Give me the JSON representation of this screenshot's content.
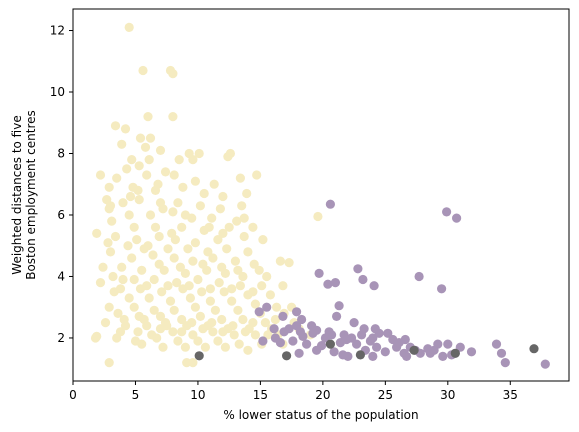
{
  "chart_data": {
    "type": "scatter",
    "title": "",
    "xlabel": "% lower status of the population",
    "ylabel_lines": [
      "Weighted distances to five",
      "Boston employment centres"
    ],
    "xlim": [
      0,
      39.7
    ],
    "ylim": [
      0.6,
      12.7
    ],
    "xticks": [
      0,
      5,
      10,
      15,
      20,
      25,
      30,
      35
    ],
    "yticks": [
      2,
      4,
      6,
      8,
      10,
      12
    ],
    "grid": false,
    "legend": "none",
    "series": [
      {
        "color": "#f5ebc0",
        "points": [
          [
            4.5,
            12.1
          ],
          [
            5.6,
            10.7
          ],
          [
            7.8,
            10.7
          ],
          [
            8.0,
            10.6
          ],
          [
            6.0,
            9.2
          ],
          [
            8.0,
            9.2
          ],
          [
            3.4,
            8.9
          ],
          [
            4.2,
            8.8
          ],
          [
            5.4,
            8.5
          ],
          [
            6.2,
            8.5
          ],
          [
            3.9,
            8.3
          ],
          [
            5.8,
            8.2
          ],
          [
            7.0,
            8.1
          ],
          [
            9.3,
            8.0
          ],
          [
            10.1,
            8.0
          ],
          [
            12.6,
            8.0
          ],
          [
            4.7,
            7.8
          ],
          [
            6.1,
            7.8
          ],
          [
            8.5,
            7.8
          ],
          [
            9.6,
            7.8
          ],
          [
            12.4,
            7.9
          ],
          [
            4.3,
            7.5
          ],
          [
            5.3,
            7.6
          ],
          [
            7.4,
            7.4
          ],
          [
            2.2,
            7.3
          ],
          [
            3.5,
            7.2
          ],
          [
            5.9,
            7.3
          ],
          [
            8.1,
            7.3
          ],
          [
            9.8,
            7.1
          ],
          [
            11.3,
            7.0
          ],
          [
            13.4,
            7.2
          ],
          [
            14.7,
            7.3
          ],
          [
            2.9,
            6.9
          ],
          [
            4.8,
            6.9
          ],
          [
            6.6,
            6.8
          ],
          [
            8.8,
            6.9
          ],
          [
            10.5,
            6.7
          ],
          [
            12.0,
            6.6
          ],
          [
            13.9,
            6.7
          ],
          [
            2.7,
            6.5
          ],
          [
            4.0,
            6.4
          ],
          [
            5.3,
            6.5
          ],
          [
            7.0,
            6.4
          ],
          [
            8.4,
            6.4
          ],
          [
            10.2,
            6.3
          ],
          [
            11.8,
            6.2
          ],
          [
            13.5,
            6.3
          ],
          [
            2.9,
            6.2
          ],
          [
            4.5,
            6.0
          ],
          [
            6.2,
            6.0
          ],
          [
            8.0,
            6.1
          ],
          [
            9.5,
            5.9
          ],
          [
            11.1,
            5.9
          ],
          [
            13.1,
            5.8
          ],
          [
            19.6,
            5.95
          ],
          [
            3.1,
            5.8
          ],
          [
            4.9,
            5.6
          ],
          [
            6.6,
            5.6
          ],
          [
            8.7,
            5.6
          ],
          [
            10.5,
            5.5
          ],
          [
            12.5,
            5.6
          ],
          [
            14.4,
            5.6
          ],
          [
            1.9,
            5.4
          ],
          [
            3.4,
            5.3
          ],
          [
            5.1,
            5.2
          ],
          [
            6.9,
            5.3
          ],
          [
            8.2,
            5.2
          ],
          [
            9.8,
            5.1
          ],
          [
            11.6,
            5.2
          ],
          [
            13.7,
            5.3
          ],
          [
            15.2,
            5.2
          ],
          [
            2.8,
            5.1
          ],
          [
            4.4,
            5.0
          ],
          [
            6.0,
            5.0
          ],
          [
            7.6,
            4.9
          ],
          [
            9.2,
            4.9
          ],
          [
            10.8,
            4.8
          ],
          [
            12.3,
            4.9
          ],
          [
            14.0,
            4.8
          ],
          [
            3.0,
            4.8
          ],
          [
            4.7,
            4.6
          ],
          [
            6.4,
            4.7
          ],
          [
            8.1,
            4.6
          ],
          [
            9.6,
            4.5
          ],
          [
            11.2,
            4.6
          ],
          [
            13.0,
            4.5
          ],
          [
            14.5,
            4.4
          ],
          [
            16.6,
            4.5
          ],
          [
            17.3,
            4.45
          ],
          [
            2.4,
            4.3
          ],
          [
            3.9,
            4.3
          ],
          [
            5.5,
            4.2
          ],
          [
            7.3,
            4.2
          ],
          [
            9.0,
            4.1
          ],
          [
            10.7,
            4.2
          ],
          [
            12.2,
            4.1
          ],
          [
            13.6,
            4.0
          ],
          [
            15.5,
            4.0
          ],
          [
            3.2,
            4.0
          ],
          [
            4.9,
            3.9
          ],
          [
            6.5,
            3.9
          ],
          [
            8.3,
            3.8
          ],
          [
            10.0,
            3.9
          ],
          [
            11.7,
            3.8
          ],
          [
            13.4,
            3.7
          ],
          [
            15.1,
            3.7
          ],
          [
            16.8,
            3.7
          ],
          [
            2.2,
            3.8
          ],
          [
            3.8,
            3.6
          ],
          [
            5.4,
            3.6
          ],
          [
            7.1,
            3.5
          ],
          [
            8.8,
            3.6
          ],
          [
            10.3,
            3.5
          ],
          [
            12.1,
            3.5
          ],
          [
            14.0,
            3.4
          ],
          [
            15.8,
            3.4
          ],
          [
            3.3,
            3.5
          ],
          [
            4.5,
            3.3
          ],
          [
            6.1,
            3.3
          ],
          [
            7.8,
            3.2
          ],
          [
            9.4,
            3.3
          ],
          [
            11.0,
            3.2
          ],
          [
            12.7,
            3.2
          ],
          [
            14.6,
            3.1
          ],
          [
            16.3,
            3.0
          ],
          [
            17.5,
            3.0
          ],
          [
            2.9,
            3.0
          ],
          [
            4.9,
            3.0
          ],
          [
            6.5,
            2.9
          ],
          [
            8.1,
            2.9
          ],
          [
            9.8,
            3.0
          ],
          [
            11.4,
            2.9
          ],
          [
            13.2,
            2.9
          ],
          [
            15.0,
            2.8
          ],
          [
            16.9,
            2.8
          ],
          [
            3.6,
            2.8
          ],
          [
            5.3,
            2.7
          ],
          [
            7.0,
            2.7
          ],
          [
            8.7,
            2.6
          ],
          [
            10.2,
            2.7
          ],
          [
            11.9,
            2.6
          ],
          [
            13.6,
            2.6
          ],
          [
            15.4,
            2.5
          ],
          [
            17.7,
            2.5
          ],
          [
            2.6,
            2.5
          ],
          [
            4.2,
            2.4
          ],
          [
            5.9,
            2.4
          ],
          [
            7.5,
            2.4
          ],
          [
            9.1,
            2.4
          ],
          [
            10.8,
            2.4
          ],
          [
            12.4,
            2.3
          ],
          [
            14.1,
            2.3
          ],
          [
            15.9,
            2.3
          ],
          [
            18.1,
            2.3
          ],
          [
            3.8,
            2.2
          ],
          [
            6.3,
            2.1
          ],
          [
            8.0,
            2.2
          ],
          [
            9.6,
            2.1
          ],
          [
            11.2,
            2.2
          ],
          [
            12.9,
            2.1
          ],
          [
            14.6,
            2.1
          ],
          [
            16.4,
            2.1
          ],
          [
            19.0,
            2.1
          ],
          [
            1.8,
            2.0
          ],
          [
            3.5,
            2.0
          ],
          [
            5.0,
            1.9
          ],
          [
            6.7,
            2.0
          ],
          [
            8.4,
            1.9
          ],
          [
            10.0,
            1.9
          ],
          [
            11.6,
            1.9
          ],
          [
            13.3,
            1.8
          ],
          [
            15.1,
            1.8
          ],
          [
            16.8,
            1.8
          ],
          [
            7.2,
            1.7
          ],
          [
            9.0,
            1.7
          ],
          [
            10.6,
            1.7
          ],
          [
            12.2,
            1.7
          ],
          [
            14.0,
            1.6
          ],
          [
            5.5,
            1.8
          ],
          [
            9.1,
            1.2
          ],
          [
            9.6,
            1.2
          ],
          [
            2.9,
            1.2
          ],
          [
            1.9,
            2.05
          ],
          [
            4.6,
            6.6
          ],
          [
            3.0,
            6.3
          ],
          [
            5.2,
            6.8
          ],
          [
            6.8,
            7.0
          ],
          [
            7.2,
            6.2
          ],
          [
            9.0,
            6.0
          ],
          [
            10.9,
            5.6
          ],
          [
            12.0,
            5.4
          ],
          [
            13.7,
            5.9
          ],
          [
            7.9,
            5.4
          ],
          [
            5.7,
            4.9
          ],
          [
            6.9,
            4.4
          ],
          [
            8.6,
            4.3
          ],
          [
            10.4,
            4.4
          ],
          [
            11.9,
            4.3
          ],
          [
            13.2,
            4.2
          ],
          [
            14.9,
            4.2
          ],
          [
            4.0,
            3.9
          ],
          [
            5.9,
            3.7
          ],
          [
            7.6,
            3.7
          ],
          [
            9.3,
            3.7
          ],
          [
            11.0,
            3.6
          ],
          [
            12.7,
            3.6
          ],
          [
            14.4,
            3.5
          ],
          [
            4.1,
            2.6
          ],
          [
            5.7,
            2.6
          ],
          [
            7.4,
            2.5
          ],
          [
            9.5,
            2.5
          ],
          [
            11.1,
            2.5
          ],
          [
            12.8,
            2.4
          ],
          [
            14.4,
            2.5
          ],
          [
            16.2,
            2.6
          ],
          [
            5.2,
            2.2
          ],
          [
            7.0,
            2.3
          ],
          [
            8.7,
            2.2
          ],
          [
            10.4,
            2.3
          ],
          [
            12.0,
            2.2
          ],
          [
            13.8,
            2.2
          ],
          [
            15.6,
            2.1
          ]
        ]
      },
      {
        "color": "#a894b7",
        "points": [
          [
            20.6,
            6.35
          ],
          [
            29.9,
            6.1
          ],
          [
            30.7,
            5.9
          ],
          [
            19.7,
            4.1
          ],
          [
            21.0,
            3.8
          ],
          [
            22.8,
            4.25
          ],
          [
            20.4,
            3.75
          ],
          [
            23.2,
            3.9
          ],
          [
            24.1,
            3.7
          ],
          [
            27.7,
            4.0
          ],
          [
            29.5,
            3.6
          ],
          [
            15.5,
            3.0
          ],
          [
            21.3,
            3.05
          ],
          [
            17.9,
            2.85
          ],
          [
            14.9,
            2.85
          ],
          [
            16.8,
            2.7
          ],
          [
            18.3,
            2.6
          ],
          [
            19.1,
            2.4
          ],
          [
            21.1,
            2.7
          ],
          [
            22.5,
            2.5
          ],
          [
            23.3,
            2.3
          ],
          [
            24.2,
            2.3
          ],
          [
            25.2,
            2.15
          ],
          [
            16.1,
            2.3
          ],
          [
            17.3,
            2.3
          ],
          [
            18.2,
            2.2
          ],
          [
            19.5,
            2.25
          ],
          [
            20.5,
            2.2
          ],
          [
            21.7,
            2.1
          ],
          [
            23.1,
            2.1
          ],
          [
            24.0,
            2.0
          ],
          [
            25.6,
            1.95
          ],
          [
            26.6,
            1.95
          ],
          [
            15.2,
            1.9
          ],
          [
            16.6,
            1.85
          ],
          [
            17.6,
            1.9
          ],
          [
            18.7,
            1.8
          ],
          [
            19.9,
            1.75
          ],
          [
            21.4,
            1.85
          ],
          [
            22.7,
            1.8
          ],
          [
            24.3,
            1.7
          ],
          [
            25.9,
            1.7
          ],
          [
            27.0,
            1.7
          ],
          [
            28.4,
            1.65
          ],
          [
            29.2,
            1.8
          ],
          [
            30.0,
            1.8
          ],
          [
            31.0,
            1.7
          ],
          [
            33.9,
            1.8
          ],
          [
            34.3,
            1.5
          ],
          [
            16.2,
            2.0
          ],
          [
            18.4,
            2.05
          ],
          [
            20.2,
            2.0
          ],
          [
            21.9,
            1.95
          ],
          [
            23.8,
            1.9
          ],
          [
            26.1,
            1.85
          ],
          [
            27.4,
            1.6
          ],
          [
            28.6,
            1.5
          ],
          [
            29.6,
            1.4
          ],
          [
            30.6,
            1.5
          ],
          [
            31.9,
            1.55
          ],
          [
            34.6,
            1.2
          ],
          [
            37.8,
            1.15
          ],
          [
            20.9,
            1.55
          ],
          [
            22.0,
            1.4
          ],
          [
            24.0,
            1.4
          ],
          [
            26.5,
            1.5
          ],
          [
            18.1,
            1.5
          ],
          [
            19.5,
            1.6
          ],
          [
            21.6,
            1.45
          ],
          [
            23.4,
            1.6
          ],
          [
            25.0,
            1.55
          ],
          [
            16.9,
            2.2
          ],
          [
            17.9,
            2.4
          ],
          [
            19.2,
            2.15
          ],
          [
            20.7,
            2.1
          ],
          [
            22.3,
            2.0
          ],
          [
            24.5,
            2.15
          ],
          [
            26.7,
            1.4
          ],
          [
            27.8,
            1.5
          ],
          [
            28.9,
            1.6
          ],
          [
            30.3,
            1.45
          ]
        ]
      },
      {
        "color": "#666666",
        "points": [
          [
            10.1,
            1.42
          ],
          [
            17.1,
            1.42
          ],
          [
            20.6,
            1.8
          ],
          [
            23.0,
            1.45
          ],
          [
            27.3,
            1.6
          ],
          [
            30.6,
            1.5
          ],
          [
            36.9,
            1.65
          ]
        ]
      }
    ]
  }
}
